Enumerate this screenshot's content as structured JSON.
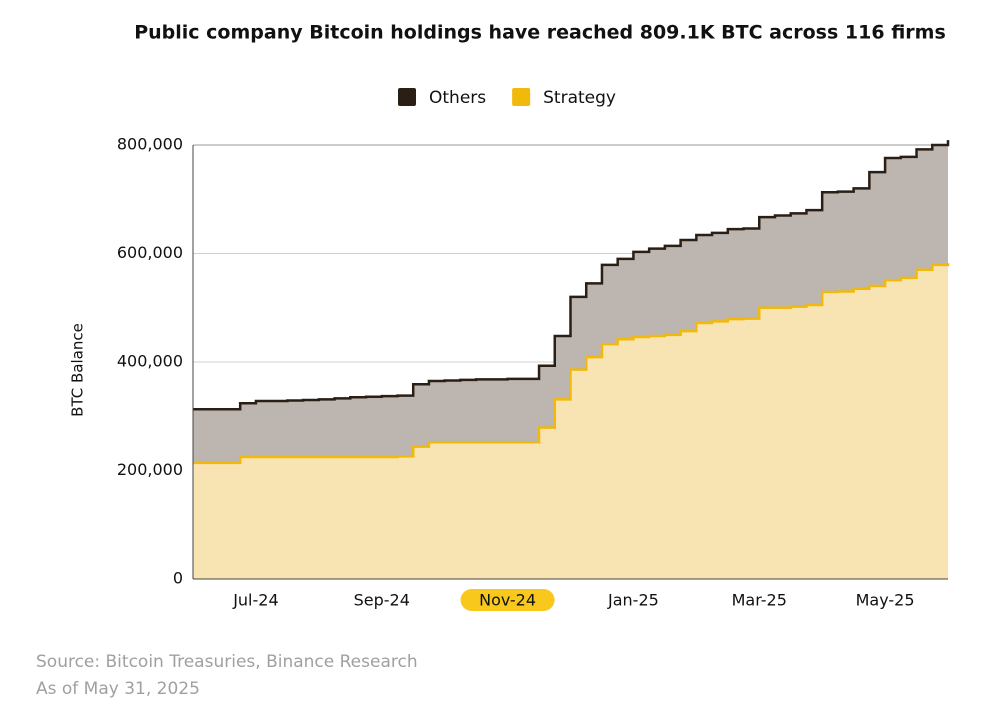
{
  "chart_data": {
    "type": "area",
    "step": true,
    "stacked": true,
    "title": "Public company Bitcoin holdings have reached 809.1K BTC across 116 firms",
    "ylabel": "BTC Balance",
    "source": "Source: Bitcoin Treasuries, Binance Research",
    "note": "As of May 31, 2025",
    "categories": [
      null,
      null,
      null,
      null,
      "Jul-24",
      null,
      null,
      null,
      null,
      null,
      null,
      null,
      "Sep-24",
      null,
      null,
      null,
      null,
      null,
      null,
      null,
      "Nov-24",
      null,
      null,
      null,
      null,
      null,
      null,
      null,
      "Jan-25",
      null,
      null,
      null,
      null,
      null,
      null,
      null,
      "Mar-25",
      null,
      null,
      null,
      null,
      null,
      null,
      null,
      "May-25",
      null,
      null,
      null,
      null
    ],
    "highlight_category": "Nov-24",
    "highlight_color": "#f8c81c",
    "series": [
      {
        "name": "Others",
        "color": "#2a1f14",
        "fill": "#bdb5af",
        "values": [
          99000,
          99000,
          99000,
          99000,
          103000,
          103000,
          104000,
          105000,
          106000,
          108000,
          110000,
          111000,
          112000,
          112000,
          115000,
          113000,
          114000,
          115000,
          116000,
          116000,
          117000,
          117000,
          114000,
          117000,
          134000,
          136000,
          146000,
          148000,
          157000,
          161000,
          164000,
          168000,
          162000,
          163000,
          166000,
          166000,
          167000,
          170000,
          172000,
          175000,
          184000,
          184000,
          185000,
          210000,
          225000,
          223000,
          222000,
          221000,
          227000
        ]
      },
      {
        "name": "Strategy",
        "color": "#f0b90b",
        "fill": "#f8e4b2",
        "values": [
          214000,
          214000,
          214000,
          225000,
          225000,
          225000,
          225000,
          225000,
          225000,
          225000,
          225000,
          225000,
          225000,
          226000,
          244000,
          252000,
          252000,
          252000,
          252000,
          252000,
          252000,
          252000,
          279000,
          331000,
          386000,
          409000,
          433000,
          442000,
          446000,
          448000,
          450000,
          457000,
          472000,
          475000,
          479000,
          480000,
          500000,
          500000,
          502000,
          505000,
          529000,
          530000,
          535000,
          540000,
          551000,
          555000,
          570000,
          579000,
          582000
        ]
      }
    ],
    "ylim": [
      0,
      800000
    ],
    "yticks": [
      0,
      {
        "value": 200000,
        "label": "200,000"
      },
      {
        "value": 400000,
        "label": "400,000"
      },
      {
        "value": 600000,
        "label": "600,000"
      },
      {
        "value": 800000,
        "label": "800,000"
      }
    ],
    "grid": true,
    "legend": "top"
  }
}
